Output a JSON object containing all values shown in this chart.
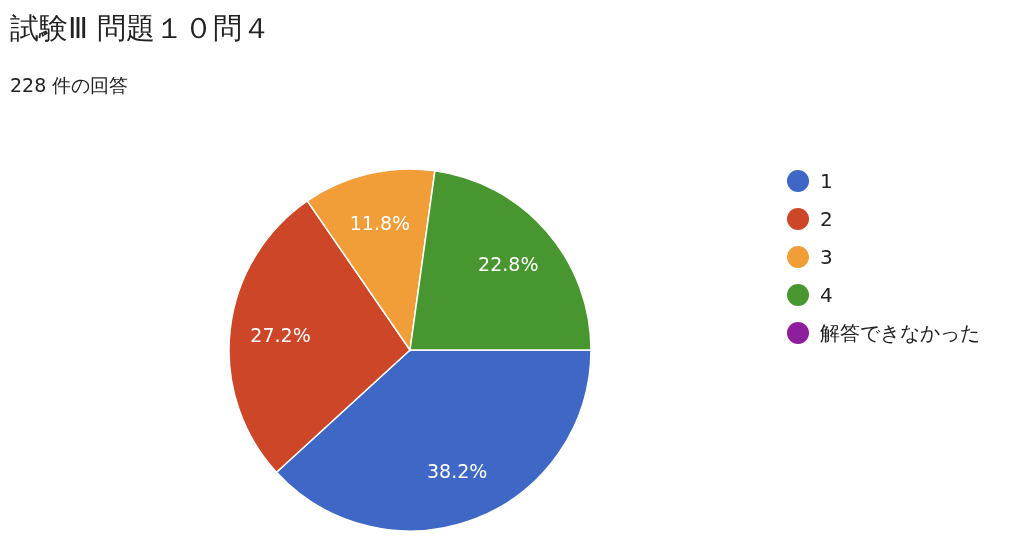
{
  "chart_data": {
    "type": "pie",
    "title": "試験Ⅲ 問題１０問４",
    "subtitle": "228 件の回答",
    "categories": [
      "1",
      "2",
      "3",
      "4",
      "解答できなかった"
    ],
    "values": [
      38.2,
      27.2,
      11.8,
      22.8,
      0
    ],
    "colors": [
      "#3f67c6",
      "#cc4627",
      "#f19d38",
      "#47962f",
      "#8f1e9e"
    ],
    "value_labels": [
      "38.2%",
      "27.2%",
      "11.8%",
      "22.8%",
      null
    ],
    "legend": "right"
  }
}
